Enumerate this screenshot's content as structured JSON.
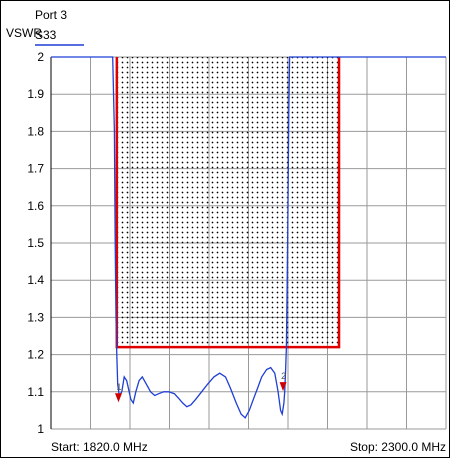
{
  "chart_data": {
    "type": "line",
    "port_label": "Port 3",
    "ylabel": "VSWR",
    "legend": [
      {
        "name": "S33",
        "color": "#1f3fd6"
      }
    ],
    "start_label": "Start: 1820.0 MHz",
    "stop_label": "Stop: 2300.0 MHz",
    "xlim": [
      1820,
      2300
    ],
    "ylim": [
      1,
      2
    ],
    "yticks": [
      "2",
      "1.9",
      "1.8",
      "1.7",
      "1.6",
      "1.5",
      "1.4",
      "1.3",
      "1.2",
      "1.1",
      "1"
    ],
    "grid": true,
    "colors": {
      "trace": "#1f3fd6",
      "limit": "#e00000",
      "marker": "#d00000",
      "grid": "#9a9a9a"
    },
    "limit_region": {
      "x_start": 1900,
      "x_stop": 2170,
      "y_limit": 1.22,
      "y_top": 2
    },
    "series": [
      {
        "name": "S33",
        "points": [
          [
            1820,
            2.0
          ],
          [
            1895,
            2.0
          ],
          [
            1897,
            1.8
          ],
          [
            1898,
            1.5
          ],
          [
            1899,
            1.3
          ],
          [
            1900,
            1.2
          ],
          [
            1901,
            1.12
          ],
          [
            1903,
            1.09
          ],
          [
            1906,
            1.1
          ],
          [
            1909,
            1.14
          ],
          [
            1912,
            1.13
          ],
          [
            1917,
            1.08
          ],
          [
            1920,
            1.07
          ],
          [
            1923,
            1.1
          ],
          [
            1927,
            1.13
          ],
          [
            1931,
            1.14
          ],
          [
            1936,
            1.12
          ],
          [
            1941,
            1.1
          ],
          [
            1946,
            1.09
          ],
          [
            1951,
            1.095
          ],
          [
            1957,
            1.1
          ],
          [
            1963,
            1.1
          ],
          [
            1970,
            1.095
          ],
          [
            1976,
            1.08
          ],
          [
            1980,
            1.07
          ],
          [
            1985,
            1.06
          ],
          [
            1990,
            1.065
          ],
          [
            1996,
            1.08
          ],
          [
            2003,
            1.1
          ],
          [
            2010,
            1.12
          ],
          [
            2018,
            1.14
          ],
          [
            2025,
            1.15
          ],
          [
            2032,
            1.14
          ],
          [
            2038,
            1.11
          ],
          [
            2045,
            1.07
          ],
          [
            2051,
            1.04
          ],
          [
            2056,
            1.03
          ],
          [
            2061,
            1.05
          ],
          [
            2066,
            1.08
          ],
          [
            2071,
            1.11
          ],
          [
            2076,
            1.14
          ],
          [
            2082,
            1.16
          ],
          [
            2087,
            1.165
          ],
          [
            2092,
            1.15
          ],
          [
            2096,
            1.1
          ],
          [
            2099,
            1.05
          ],
          [
            2101,
            1.04
          ],
          [
            2103,
            1.07
          ],
          [
            2104,
            1.1
          ],
          [
            2105,
            1.15
          ],
          [
            2106,
            1.22
          ],
          [
            2107,
            1.4
          ],
          [
            2108,
            1.6
          ],
          [
            2109,
            1.85
          ],
          [
            2110,
            2.0
          ],
          [
            2300,
            2.0
          ]
        ]
      }
    ],
    "markers": [
      {
        "label": "1",
        "x": 1902,
        "y": 1.08
      },
      {
        "label": "2",
        "x": 2102,
        "y": 1.11
      }
    ]
  }
}
